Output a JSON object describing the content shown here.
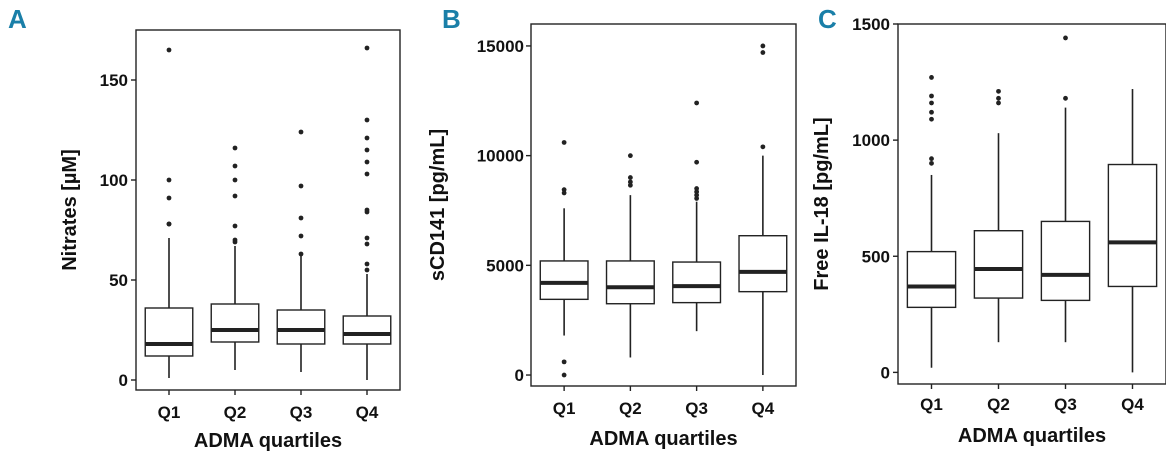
{
  "chart_data": [
    {
      "type": "box",
      "panel": "A",
      "xlabel": "ADMA quartiles",
      "ylabel": "Nitrates [µM]",
      "categories": [
        "Q1",
        "Q2",
        "Q3",
        "Q4"
      ],
      "ylim": [
        -5,
        175
      ],
      "yticks": [
        0,
        50,
        100,
        150
      ],
      "boxes": [
        {
          "min": 1,
          "q1": 12,
          "median": 18,
          "q3": 36,
          "max": 71,
          "outliers": [
            78,
            78,
            91,
            100,
            165
          ]
        },
        {
          "min": 5,
          "q1": 19,
          "median": 25,
          "q3": 38,
          "max": 67,
          "outliers": [
            69,
            70,
            77,
            92,
            100,
            107,
            116
          ]
        },
        {
          "min": 4,
          "q1": 18,
          "median": 25,
          "q3": 35,
          "max": 62,
          "outliers": [
            63,
            72,
            81,
            97,
            124
          ]
        },
        {
          "min": 0,
          "q1": 18,
          "median": 23,
          "q3": 32,
          "max": 53,
          "outliers": [
            55,
            58,
            68,
            71,
            84,
            85,
            103,
            109,
            115,
            121,
            130,
            166
          ]
        }
      ]
    },
    {
      "type": "box",
      "panel": "B",
      "xlabel": "ADMA quartiles",
      "ylabel": "sCD141 [pg/mL]",
      "categories": [
        "Q1",
        "Q2",
        "Q3",
        "Q4"
      ],
      "ylim": [
        -500,
        16000
      ],
      "yticks": [
        0,
        5000,
        10000,
        15000
      ],
      "boxes": [
        {
          "min": 1800,
          "q1": 3450,
          "median": 4200,
          "q3": 5200,
          "max": 7600,
          "outliers": [
            0,
            600,
            8300,
            8450,
            10600
          ]
        },
        {
          "min": 800,
          "q1": 3250,
          "median": 4000,
          "q3": 5200,
          "max": 8200,
          "outliers": [
            8650,
            8800,
            9000,
            10000
          ]
        },
        {
          "min": 2000,
          "q1": 3300,
          "median": 4050,
          "q3": 5150,
          "max": 7900,
          "outliers": [
            8050,
            8200,
            8350,
            8500,
            9700,
            12400
          ]
        },
        {
          "min": 0,
          "q1": 3800,
          "median": 4700,
          "q3": 6350,
          "max": 10000,
          "outliers": [
            10400,
            14700,
            15000
          ]
        }
      ]
    },
    {
      "type": "box",
      "panel": "C",
      "xlabel": "ADMA quartiles",
      "ylabel": "Free IL-18 [pg/mL]",
      "categories": [
        "Q1",
        "Q2",
        "Q3",
        "Q4"
      ],
      "ylim": [
        -50,
        1500
      ],
      "yticks": [
        0,
        500,
        1000,
        1500
      ],
      "boxes": [
        {
          "min": 20,
          "q1": 280,
          "median": 370,
          "q3": 520,
          "max": 850,
          "outliers": [
            900,
            920,
            1090,
            1120,
            1160,
            1190,
            1270
          ]
        },
        {
          "min": 130,
          "q1": 320,
          "median": 445,
          "q3": 610,
          "max": 1030,
          "outliers": [
            1160,
            1180,
            1210
          ]
        },
        {
          "min": 130,
          "q1": 310,
          "median": 420,
          "q3": 650,
          "max": 1140,
          "outliers": [
            1180,
            1440
          ]
        },
        {
          "min": 0,
          "q1": 370,
          "median": 560,
          "q3": 895,
          "max": 1220,
          "outliers": []
        }
      ]
    }
  ]
}
